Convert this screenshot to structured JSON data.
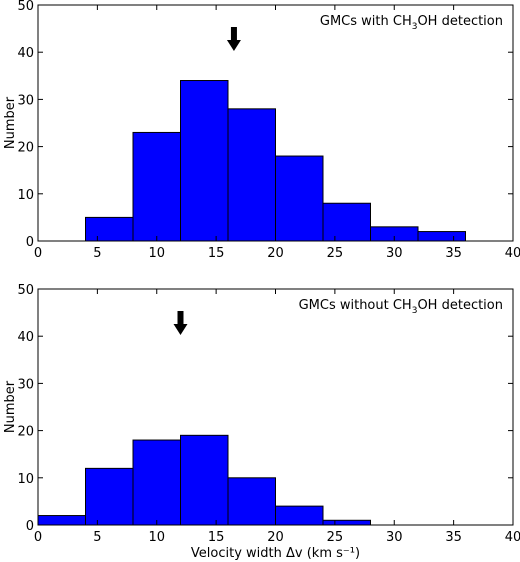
{
  "chart_data": [
    {
      "type": "bar",
      "title": "",
      "xlabel": "",
      "ylabel": "Number",
      "xlim": [
        0,
        40
      ],
      "ylim": [
        0,
        50
      ],
      "x_ticks": [
        "0",
        "5",
        "10",
        "15",
        "20",
        "25",
        "30",
        "35",
        "40"
      ],
      "y_ticks": [
        "0",
        "10",
        "20",
        "30",
        "40",
        "50"
      ],
      "annotation": {
        "prefix": "GMCs with CH",
        "sub": "3",
        "suffix": "OH detection"
      },
      "arrow_x": 16.5,
      "bins": [
        {
          "x0": 4,
          "x1": 8,
          "value": 5
        },
        {
          "x0": 8,
          "x1": 12,
          "value": 23
        },
        {
          "x0": 12,
          "x1": 16,
          "value": 34
        },
        {
          "x0": 16,
          "x1": 20,
          "value": 28
        },
        {
          "x0": 20,
          "x1": 24,
          "value": 18
        },
        {
          "x0": 24,
          "x1": 28,
          "value": 8
        },
        {
          "x0": 28,
          "x1": 32,
          "value": 3
        },
        {
          "x0": 32,
          "x1": 36,
          "value": 2
        }
      ],
      "bar_color": "#0000ff",
      "grid": false
    },
    {
      "type": "bar",
      "title": "",
      "xlabel": "Velocity width Δv (km s⁻¹)",
      "ylabel": "Number",
      "xlim": [
        0,
        40
      ],
      "ylim": [
        0,
        50
      ],
      "x_ticks": [
        "0",
        "5",
        "10",
        "15",
        "20",
        "25",
        "30",
        "35",
        "40"
      ],
      "y_ticks": [
        "0",
        "10",
        "20",
        "30",
        "40",
        "50"
      ],
      "annotation": {
        "prefix": "GMCs without CH",
        "sub": "3",
        "suffix": "OH detection"
      },
      "arrow_x": 12,
      "bins": [
        {
          "x0": 0,
          "x1": 4,
          "value": 2
        },
        {
          "x0": 4,
          "x1": 8,
          "value": 12
        },
        {
          "x0": 8,
          "x1": 12,
          "value": 18
        },
        {
          "x0": 12,
          "x1": 16,
          "value": 19
        },
        {
          "x0": 16,
          "x1": 20,
          "value": 10
        },
        {
          "x0": 20,
          "x1": 24,
          "value": 4
        },
        {
          "x0": 24,
          "x1": 28,
          "value": 1
        }
      ],
      "bar_color": "#0000ff",
      "grid": false
    }
  ]
}
